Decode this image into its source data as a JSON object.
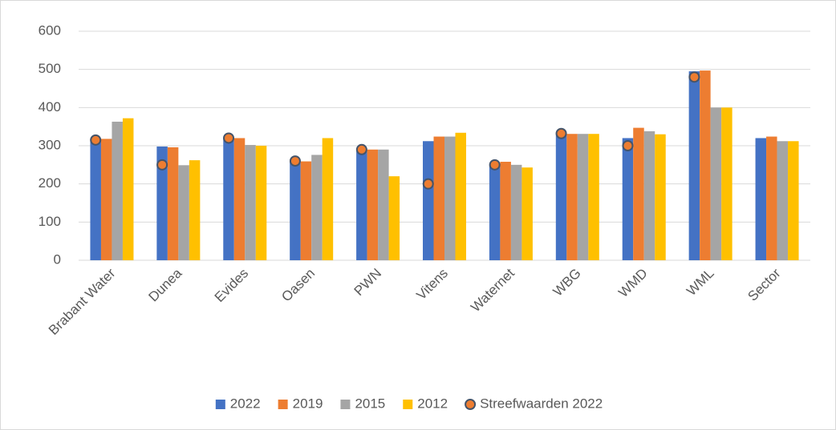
{
  "chart_data": {
    "type": "bar",
    "categories": [
      "Brabant Water",
      "Dunea",
      "Evides",
      "Oasen",
      "PWN",
      "Vitens",
      "Waternet",
      "WBG",
      "WMD",
      "WML",
      "Sector"
    ],
    "series": [
      {
        "name": "2022",
        "color": "#4472c4",
        "values": [
          318,
          298,
          322,
          262,
          292,
          312,
          250,
          332,
          320,
          495,
          320
        ]
      },
      {
        "name": "2019",
        "color": "#ed7d31",
        "values": [
          318,
          296,
          320,
          259,
          290,
          324,
          258,
          331,
          347,
          497,
          324
        ]
      },
      {
        "name": "2015",
        "color": "#a5a5a5",
        "values": [
          363,
          249,
          302,
          276,
          290,
          324,
          250,
          331,
          338,
          400,
          312
        ]
      },
      {
        "name": "2012",
        "color": "#ffc000",
        "values": [
          372,
          262,
          300,
          320,
          220,
          334,
          243,
          331,
          330,
          400,
          312
        ]
      },
      {
        "name": "Streefwaarden 2022",
        "type": "scatter",
        "color": "#ed7d31",
        "edge_color": "#44546a",
        "values": [
          315,
          250,
          320,
          260,
          290,
          200,
          250,
          332,
          300,
          480,
          null
        ]
      }
    ],
    "ylim": [
      0,
      600
    ],
    "yticks": [
      0,
      100,
      200,
      300,
      400,
      500,
      600
    ],
    "grid": true,
    "legend": "bottom"
  }
}
